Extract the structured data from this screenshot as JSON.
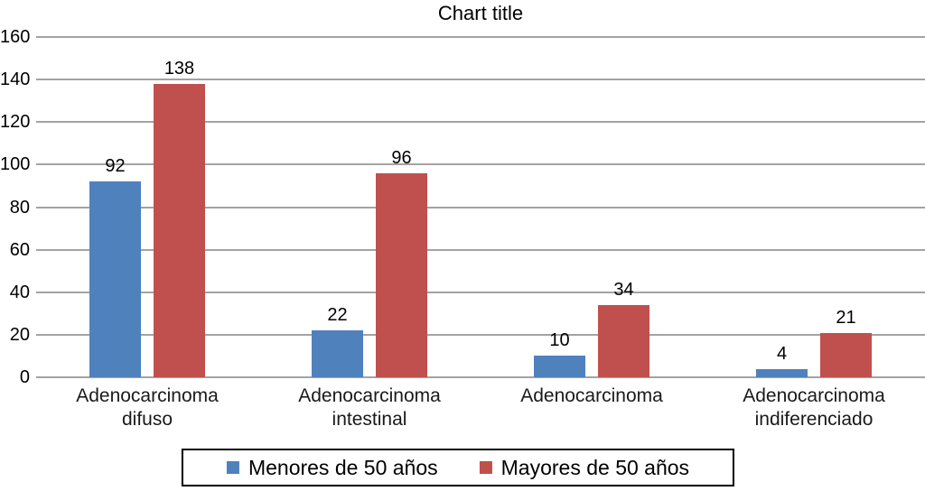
{
  "title": "Chart title",
  "colors": {
    "series_menores": "#4F81BD",
    "series_mayores": "#C0504D",
    "gridline": "#A3A3A3",
    "text": "#000000",
    "legend_border": "#000000",
    "background": "#FFFFFF"
  },
  "chart_data": {
    "type": "bar",
    "title": "Chart title",
    "categories": [
      "Adenocarcinoma difuso",
      "Adenocarcinoma intestinal",
      "Adenocarcinoma",
      "Adenocarcinoma indiferenciado"
    ],
    "series": [
      {
        "name": "Menores de 50 años",
        "color": "#4F81BD",
        "values": [
          92,
          22,
          10,
          4
        ]
      },
      {
        "name": "Mayores de 50 años",
        "color": "#C0504D",
        "values": [
          138,
          96,
          34,
          21
        ]
      }
    ],
    "data_labels": [
      {
        "series": "Menores de 50 años",
        "values": [
          "92",
          "22",
          "10",
          "4"
        ]
      },
      {
        "series": "Mayores de 50 años",
        "values": [
          "138",
          "96",
          "34",
          "21"
        ]
      }
    ],
    "xlabel": "",
    "ylabel": "",
    "ylim": [
      0,
      160
    ],
    "yticks": [
      0,
      20,
      40,
      60,
      80,
      100,
      120,
      140,
      160
    ],
    "grid": true,
    "legend_position": "bottom"
  }
}
